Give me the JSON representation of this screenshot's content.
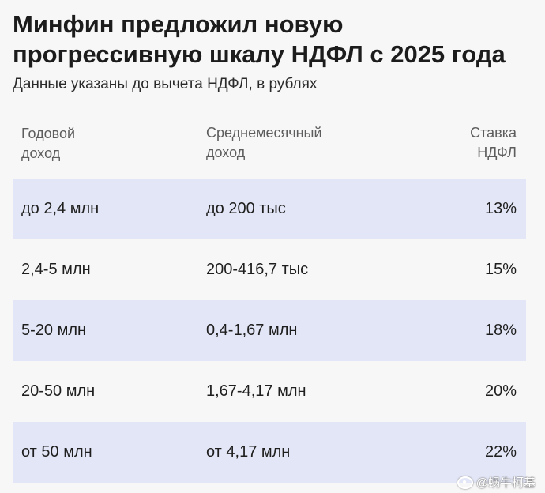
{
  "title": "Минфин предложил новую прогрессивную шкалу НДФЛ с 2025 года",
  "subtitle": "Данные указаны до вычета НДФЛ, в рублях",
  "table": {
    "headers": [
      [
        "Годовой",
        "доход"
      ],
      [
        "Среднемесячный",
        "доход"
      ],
      [
        "Ставка",
        "НДФЛ"
      ]
    ],
    "rows": [
      [
        "до 2,4 млн",
        "до 200 тыс",
        "13%"
      ],
      [
        "2,4-5 млн",
        "200-416,7 тыс",
        "15%"
      ],
      [
        "5-20 млн",
        "0,4-1,67 млн",
        "18%"
      ],
      [
        "20-50 млн",
        "1,67-4,17 млн",
        "20%"
      ],
      [
        "от 50 млн",
        "от 4,17 млн",
        "22%"
      ]
    ]
  },
  "watermark": "@蜗牛柯基",
  "colors": {
    "shaded_row": "#e3e6f6",
    "background": "#f7f7f8",
    "header_text": "#5d5d5d"
  }
}
